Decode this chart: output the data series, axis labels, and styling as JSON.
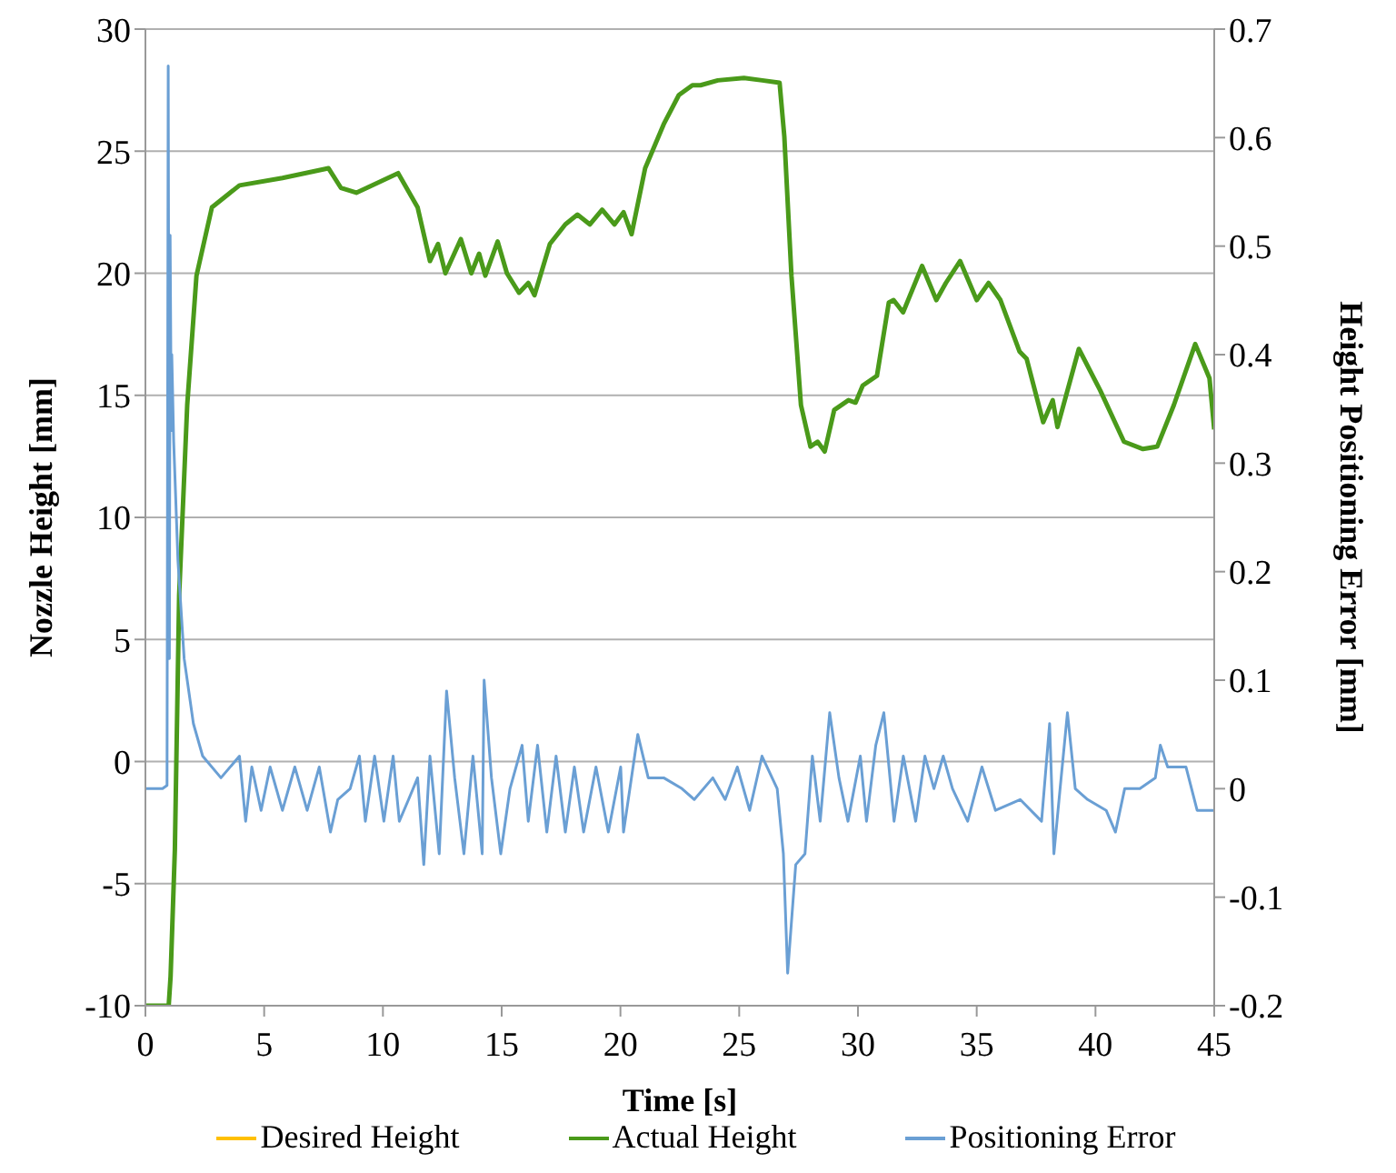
{
  "chart_data": {
    "type": "line",
    "xlabel": "Time [s]",
    "ylabel": "Nozzle Height [mm]",
    "y2label": "Height Positioning Error [mm]",
    "xlim": [
      0,
      45
    ],
    "xticks": [
      0,
      5,
      10,
      15,
      20,
      25,
      30,
      35,
      40,
      45
    ],
    "ylim": [
      -10,
      30
    ],
    "yticks": [
      -10,
      -5,
      0,
      5,
      10,
      15,
      20,
      25,
      30
    ],
    "y2lim": [
      -0.2,
      0.7
    ],
    "y2ticks": [
      -0.2,
      -0.1,
      0,
      0.1,
      0.2,
      0.3,
      0.4,
      0.5,
      0.6,
      0.7
    ],
    "grid": "y",
    "legend": "bottom",
    "marker": "none",
    "line_style": "solid",
    "series": [
      {
        "name": "Desired Height",
        "color": "#ffc000"
      },
      {
        "name": "Actual Height",
        "color": "#4a9a1a",
        "x": [
          0,
          0.98,
          1.06,
          1.24,
          1.42,
          1.76,
          2.15,
          2.8,
          3.96,
          5.77,
          7.71,
          8.23,
          8.88,
          10.64,
          11.46,
          11.98,
          12.32,
          12.63,
          13.28,
          13.72,
          14.05,
          14.31,
          14.83,
          15.22,
          15.73,
          16.12,
          16.38,
          17.03,
          17.68,
          18.19,
          18.71,
          19.23,
          19.75,
          20.13,
          20.47,
          21.04,
          21.82,
          22.46,
          23.03,
          23.37,
          24.1,
          25.2,
          25.97,
          26.7,
          26.9,
          27.2,
          27.6,
          28.0,
          28.3,
          28.6,
          29.0,
          29.6,
          29.9,
          30.2,
          30.8,
          31.3,
          31.5,
          31.9,
          32.7,
          33.3,
          33.7,
          34.3,
          35.0,
          35.5,
          36.0,
          36.8,
          37.1,
          37.8,
          38.2,
          38.4,
          39.3,
          40.2,
          41.2,
          42.0,
          42.6,
          43.3,
          44.2,
          44.8,
          45
        ],
        "values": [
          -10,
          -10,
          -8.8,
          -3.6,
          6.8,
          14.6,
          19.9,
          22.7,
          23.6,
          23.9,
          24.3,
          23.5,
          23.3,
          24.1,
          22.7,
          20.5,
          21.2,
          20.0,
          21.4,
          20.0,
          20.8,
          19.9,
          21.3,
          20.0,
          19.2,
          19.6,
          19.1,
          21.2,
          22.0,
          22.4,
          22.0,
          22.6,
          22.0,
          22.5,
          21.6,
          24.3,
          26.1,
          27.3,
          27.7,
          27.7,
          27.9,
          28.0,
          27.9,
          27.8,
          25.6,
          19.9,
          14.6,
          12.9,
          13.1,
          12.7,
          14.4,
          14.8,
          14.7,
          15.4,
          15.8,
          18.8,
          18.9,
          18.4,
          20.3,
          18.9,
          19.6,
          20.5,
          18.9,
          19.6,
          18.9,
          16.8,
          16.5,
          13.9,
          14.8,
          13.7,
          16.9,
          15.2,
          13.1,
          12.8,
          12.9,
          14.6,
          17.1,
          15.7,
          13.6
        ]
      },
      {
        "name": "Positioning Error",
        "color": "#6a9fd4",
        "axis": "y2",
        "x": [
          0,
          0.72,
          0.91,
          0.96,
          1.01,
          1.04,
          1.09,
          1.11,
          1.19,
          1.37,
          1.63,
          2.02,
          2.41,
          3.18,
          3.96,
          4.22,
          4.48,
          4.87,
          5.25,
          5.77,
          6.29,
          6.81,
          7.32,
          7.79,
          8.1,
          8.62,
          9.01,
          9.26,
          9.65,
          10.04,
          10.43,
          10.69,
          11.08,
          11.46,
          11.72,
          11.98,
          12.37,
          12.68,
          13.02,
          13.41,
          13.79,
          14.18,
          14.26,
          14.57,
          14.96,
          15.35,
          15.86,
          16.12,
          16.51,
          16.9,
          17.29,
          17.68,
          18.06,
          18.45,
          18.97,
          19.49,
          20.01,
          20.13,
          20.73,
          21.17,
          21.82,
          22.59,
          23.11,
          23.89,
          24.41,
          24.92,
          25.44,
          25.96,
          26.6,
          26.86,
          27.04,
          27.38,
          27.77,
          28.08,
          28.41,
          28.81,
          29.2,
          29.58,
          30.1,
          30.36,
          30.75,
          31.09,
          31.52,
          31.91,
          32.43,
          32.82,
          33.2,
          33.59,
          33.98,
          34.62,
          35.22,
          35.79,
          36.83,
          37.73,
          38.07,
          38.25,
          38.51,
          38.82,
          39.15,
          39.67,
          40.45,
          40.84,
          41.23,
          41.87,
          42.52,
          42.73,
          43.04,
          43.81,
          44.28,
          44.85,
          45
        ],
        "values": [
          0,
          0,
          0.003,
          0.666,
          0.12,
          0.51,
          0.33,
          0.4,
          0.32,
          0.21,
          0.12,
          0.06,
          0.03,
          0.01,
          0.03,
          -0.03,
          0.02,
          -0.02,
          0.02,
          -0.02,
          0.02,
          -0.02,
          0.02,
          -0.04,
          -0.01,
          0,
          0.03,
          -0.03,
          0.03,
          -0.03,
          0.03,
          -0.03,
          -0.01,
          0.01,
          -0.07,
          0.03,
          -0.06,
          0.09,
          0.01,
          -0.06,
          0.03,
          -0.06,
          0.1,
          0.01,
          -0.06,
          0,
          0.04,
          -0.03,
          0.04,
          -0.04,
          0.03,
          -0.04,
          0.02,
          -0.04,
          0.02,
          -0.04,
          0.02,
          -0.04,
          0.05,
          0.01,
          0.01,
          0,
          -0.01,
          0.01,
          -0.01,
          0.02,
          -0.02,
          0.03,
          0,
          -0.06,
          -0.17,
          -0.07,
          -0.06,
          0.03,
          -0.03,
          0.07,
          0.01,
          -0.03,
          0.03,
          -0.03,
          0.04,
          0.07,
          -0.03,
          0.03,
          -0.03,
          0.03,
          0,
          0.03,
          0,
          -0.03,
          0.02,
          -0.02,
          -0.01,
          -0.03,
          0.06,
          -0.06,
          0,
          0.07,
          0,
          -0.01,
          -0.02,
          -0.04,
          0,
          0,
          0.01,
          0.04,
          0.02,
          0.02,
          -0.02,
          -0.02,
          -0.02
        ]
      }
    ]
  }
}
